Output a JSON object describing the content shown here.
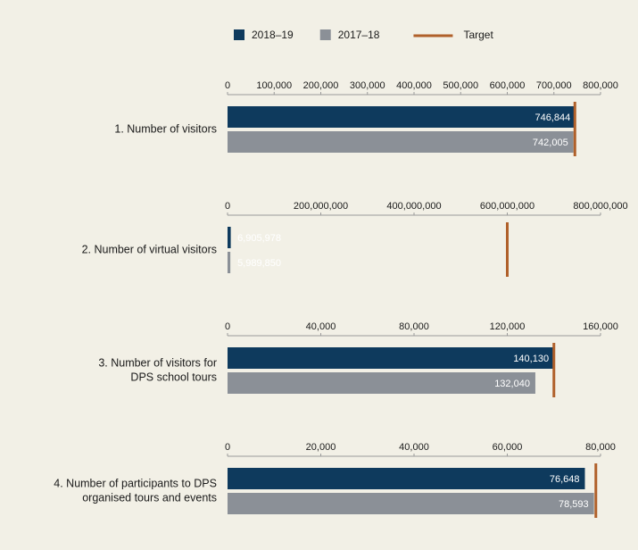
{
  "chart_data": {
    "type": "bar",
    "orientation": "horizontal",
    "categories": [
      [
        "1. Number of visitors"
      ],
      [
        "2. Number of virtual visitors"
      ],
      [
        "3. Number of visitors for",
        "DPS school tours"
      ],
      [
        "4. Number of participants to DPS",
        "organised tours and events"
      ]
    ],
    "series": [
      {
        "name": "2018–19",
        "color": "#0e3a5d",
        "values": [
          746844,
          6905978,
          140130,
          76648
        ],
        "value_labels": [
          "746,844",
          "6,905,978",
          "140,130",
          "76,648"
        ]
      },
      {
        "name": "2017–18",
        "color": "#8b9097",
        "values": [
          742005,
          5989850,
          132040,
          78593
        ],
        "value_labels": [
          "742,005",
          "5,989,850",
          "132,040",
          "78,593"
        ]
      }
    ],
    "target": {
      "name": "Target",
      "color": "#b0602a",
      "values": [
        745000,
        600000000,
        140000,
        79000
      ]
    },
    "panels": [
      {
        "xlim": [
          0,
          800000
        ],
        "xticks": [
          0,
          {
            "value": 100000,
            "label": "100,000"
          },
          {
            "value": 200000,
            "label": "200,000"
          },
          {
            "value": 300000,
            "label": "300,000"
          },
          {
            "value": 400000,
            "label": "400,000"
          },
          {
            "value": 500000,
            "label": "500,000"
          },
          {
            "value": 600000,
            "label": "600,000"
          },
          {
            "value": 700000,
            "label": "700,000"
          },
          {
            "value": 800000,
            "label": "800,000"
          }
        ]
      },
      {
        "xlim": [
          0,
          800000000
        ],
        "xticks": [
          0,
          {
            "value": 200000000,
            "label": "200,000,000"
          },
          {
            "value": 400000000,
            "label": "400,000,000"
          },
          {
            "value": 600000000,
            "label": "600,000,000"
          },
          {
            "value": 800000000,
            "label": "800,000,000"
          }
        ]
      },
      {
        "xlim": [
          0,
          160000
        ],
        "xticks": [
          0,
          {
            "value": 40000,
            "label": "40,000"
          },
          {
            "value": 80000,
            "label": "80,000"
          },
          {
            "value": 120000,
            "label": "120,000"
          },
          {
            "value": 160000,
            "label": "160,000"
          }
        ]
      },
      {
        "xlim": [
          0,
          80000
        ],
        "xticks": [
          0,
          {
            "value": 20000,
            "label": "20,000"
          },
          {
            "value": 40000,
            "label": "40,000"
          },
          {
            "value": 60000,
            "label": "60,000"
          },
          {
            "value": 80000,
            "label": "80,000"
          }
        ]
      }
    ]
  }
}
